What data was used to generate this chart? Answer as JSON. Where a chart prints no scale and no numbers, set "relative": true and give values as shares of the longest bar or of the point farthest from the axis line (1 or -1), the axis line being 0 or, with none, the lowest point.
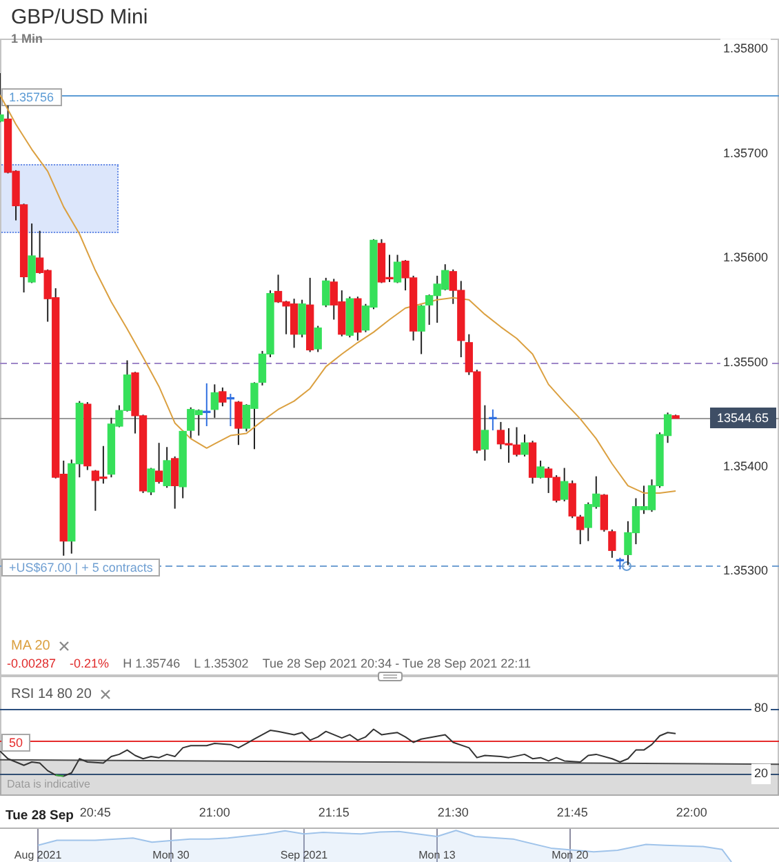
{
  "chart_data": [
    {
      "type": "candlestick",
      "title": "GBP/USD Mini",
      "subtitle": "1 Min",
      "x": [
        "2021-09-28T20:33",
        "2021-09-28T20:34",
        "2021-09-28T20:35",
        "2021-09-28T20:36",
        "2021-09-28T20:37",
        "2021-09-28T20:38",
        "2021-09-28T20:39",
        "2021-09-28T20:40",
        "2021-09-28T20:41",
        "2021-09-28T20:42",
        "2021-09-28T20:43",
        "2021-09-28T20:44",
        "2021-09-28T20:45",
        "2021-09-28T20:46",
        "2021-09-28T20:47",
        "2021-09-28T20:48",
        "2021-09-28T20:49",
        "2021-09-28T20:50",
        "2021-09-28T20:51",
        "2021-09-28T20:52",
        "2021-09-28T20:53",
        "2021-09-28T20:54",
        "2021-09-28T20:55",
        "2021-09-28T20:56",
        "2021-09-28T20:57",
        "2021-09-28T20:58",
        "2021-09-28T20:59",
        "2021-09-28T21:00",
        "2021-09-28T21:01",
        "2021-09-28T21:02",
        "2021-09-28T21:03",
        "2021-09-28T21:04",
        "2021-09-28T21:05",
        "2021-09-28T21:06",
        "2021-09-28T21:07",
        "2021-09-28T21:08",
        "2021-09-28T21:09",
        "2021-09-28T21:10",
        "2021-09-28T21:11",
        "2021-09-28T21:12",
        "2021-09-28T21:13",
        "2021-09-28T21:14",
        "2021-09-28T21:15",
        "2021-09-28T21:16",
        "2021-09-28T21:17",
        "2021-09-28T21:18",
        "2021-09-28T21:19",
        "2021-09-28T21:20",
        "2021-09-28T21:21",
        "2021-09-28T21:22",
        "2021-09-28T21:23",
        "2021-09-28T21:24",
        "2021-09-28T21:25",
        "2021-09-28T21:26",
        "2021-09-28T21:27",
        "2021-09-28T21:28",
        "2021-09-28T21:29",
        "2021-09-28T21:30",
        "2021-09-28T21:31",
        "2021-09-28T21:32",
        "2021-09-28T21:33",
        "2021-09-28T21:34",
        "2021-09-28T21:35",
        "2021-09-28T21:36",
        "2021-09-28T21:37",
        "2021-09-28T21:38",
        "2021-09-28T21:39",
        "2021-09-28T21:40",
        "2021-09-28T21:41",
        "2021-09-28T21:42",
        "2021-09-28T21:43",
        "2021-09-28T21:44",
        "2021-09-28T21:45",
        "2021-09-28T21:46",
        "2021-09-28T21:47",
        "2021-09-28T21:48",
        "2021-09-28T21:49",
        "2021-09-28T21:50",
        "2021-09-28T21:51",
        "2021-09-28T21:52",
        "2021-09-28T21:53",
        "2021-09-28T21:54",
        "2021-09-28T21:55",
        "2021-09-28T21:56",
        "2021-09-28T21:57",
        "2021-09-28T21:58"
      ],
      "ohlc": [
        [
          1.35731,
          1.35777,
          1.3573,
          1.35737
        ],
        [
          1.35733,
          1.35746,
          1.35681,
          1.35682
        ],
        [
          1.35683,
          1.35684,
          1.35636,
          1.3565
        ],
        [
          1.35651,
          1.35652,
          1.35567,
          1.35582
        ],
        [
          1.35577,
          1.35633,
          1.35576,
          1.35602
        ],
        [
          1.356,
          1.35626,
          1.35585,
          1.35586
        ],
        [
          1.35588,
          1.35589,
          1.35539,
          1.35561
        ],
        [
          1.35562,
          1.35571,
          1.35389,
          1.3539
        ],
        [
          1.35393,
          1.35406,
          1.35315,
          1.35329
        ],
        [
          1.35329,
          1.35407,
          1.35317,
          1.35403
        ],
        [
          1.35403,
          1.35463,
          1.3539,
          1.35461
        ],
        [
          1.3546,
          1.35462,
          1.35397,
          1.35401
        ],
        [
          1.35396,
          1.35397,
          1.35358,
          1.35387
        ],
        [
          1.3539,
          1.3542,
          1.35384,
          1.35389
        ],
        [
          1.35393,
          1.35447,
          1.3539,
          1.35441
        ],
        [
          1.35439,
          1.35459,
          1.35438,
          1.35454
        ],
        [
          1.35454,
          1.35502,
          1.35453,
          1.35488
        ],
        [
          1.3549,
          1.35491,
          1.35432,
          1.35449
        ],
        [
          1.35449,
          1.3545,
          1.35375,
          1.35377
        ],
        [
          1.35376,
          1.35399,
          1.35373,
          1.35398
        ],
        [
          1.35396,
          1.35423,
          1.35384,
          1.35386
        ],
        [
          1.35382,
          1.35419,
          1.3538,
          1.35406
        ],
        [
          1.35408,
          1.3541,
          1.3536,
          1.35382
        ],
        [
          1.35381,
          1.35435,
          1.3537,
          1.35434
        ],
        [
          1.35435,
          1.35457,
          1.35427,
          1.35455
        ],
        [
          1.3545,
          1.35455,
          1.3543,
          1.35454
        ],
        [
          1.35452,
          1.3548,
          1.35439,
          1.35452
        ],
        [
          1.35455,
          1.35479,
          1.35447,
          1.35471
        ],
        [
          1.35472,
          1.35476,
          1.35458,
          1.35462
        ],
        [
          1.35465,
          1.3547,
          1.35439,
          1.35465
        ],
        [
          1.35462,
          1.35463,
          1.35421,
          1.35437
        ],
        [
          1.35437,
          1.3546,
          1.35434,
          1.35459
        ],
        [
          1.35456,
          1.35481,
          1.35417,
          1.3548
        ],
        [
          1.35481,
          1.35511,
          1.35478,
          1.35508
        ],
        [
          1.35508,
          1.35569,
          1.35505,
          1.35566
        ],
        [
          1.35568,
          1.35584,
          1.35557,
          1.35558
        ],
        [
          1.35558,
          1.35559,
          1.35527,
          1.35554
        ],
        [
          1.35556,
          1.35561,
          1.35514,
          1.35527
        ],
        [
          1.35527,
          1.3556,
          1.35524,
          1.35556
        ],
        [
          1.35555,
          1.35581,
          1.3551,
          1.35512
        ],
        [
          1.35513,
          1.35535,
          1.3551,
          1.35533
        ],
        [
          1.35555,
          1.35581,
          1.35553,
          1.35578
        ],
        [
          1.35577,
          1.3558,
          1.35541,
          1.35555
        ],
        [
          1.35558,
          1.35569,
          1.35525,
          1.35527
        ],
        [
          1.35526,
          1.35563,
          1.35524,
          1.35561
        ],
        [
          1.35561,
          1.35563,
          1.35521,
          1.35529
        ],
        [
          1.35531,
          1.35556,
          1.35529,
          1.35554
        ],
        [
          1.35553,
          1.35618,
          1.35551,
          1.35617
        ],
        [
          1.35614,
          1.35618,
          1.35576,
          1.35577
        ],
        [
          1.35581,
          1.35603,
          1.35577,
          1.3558
        ],
        [
          1.35577,
          1.35603,
          1.35576,
          1.35596
        ],
        [
          1.35597,
          1.35598,
          1.35569,
          1.35581
        ],
        [
          1.35581,
          1.35583,
          1.35521,
          1.3553
        ],
        [
          1.3553,
          1.35555,
          1.35508,
          1.35554
        ],
        [
          1.35555,
          1.35565,
          1.35536,
          1.35564
        ],
        [
          1.35564,
          1.35583,
          1.35538,
          1.35575
        ],
        [
          1.3557,
          1.35594,
          1.35569,
          1.35588
        ],
        [
          1.35587,
          1.35589,
          1.35556,
          1.35569
        ],
        [
          1.35569,
          1.35578,
          1.35505,
          1.35521
        ],
        [
          1.35519,
          1.35527,
          1.35488,
          1.35491
        ],
        [
          1.35491,
          1.35493,
          1.35413,
          1.35416
        ],
        [
          1.35417,
          1.35459,
          1.35406,
          1.35435
        ],
        [
          1.35446,
          1.35455,
          1.35435,
          1.35446
        ],
        [
          1.35435,
          1.35443,
          1.35417,
          1.35422
        ],
        [
          1.35422,
          1.35437,
          1.35404,
          1.35421
        ],
        [
          1.35421,
          1.35438,
          1.3541,
          1.35412
        ],
        [
          1.35412,
          1.35431,
          1.3541,
          1.35423
        ],
        [
          1.35423,
          1.35425,
          1.35384,
          1.3539
        ],
        [
          1.3539,
          1.35406,
          1.35389,
          1.354
        ],
        [
          1.35398,
          1.354,
          1.35375,
          1.3539
        ],
        [
          1.3539,
          1.35392,
          1.35366,
          1.35368
        ],
        [
          1.35369,
          1.35399,
          1.35367,
          1.35386
        ],
        [
          1.35384,
          1.35387,
          1.35351,
          1.35353
        ],
        [
          1.35352,
          1.35354,
          1.35326,
          1.3534
        ],
        [
          1.35342,
          1.35366,
          1.35329,
          1.35364
        ],
        [
          1.35362,
          1.35391,
          1.3536,
          1.35374
        ],
        [
          1.35373,
          1.35374,
          1.35338,
          1.3534
        ],
        [
          1.35338,
          1.3534,
          1.35313,
          1.3532
        ],
        [
          1.3531,
          1.35313,
          1.35302,
          1.3531
        ],
        [
          1.35316,
          1.35348,
          1.35306,
          1.35337
        ],
        [
          1.35337,
          1.3537,
          1.35326,
          1.35362
        ],
        [
          1.35359,
          1.35382,
          1.35355,
          1.35362
        ],
        [
          1.35359,
          1.35388,
          1.35357,
          1.35382
        ],
        [
          1.35382,
          1.35433,
          1.3538,
          1.35431
        ],
        [
          1.3543,
          1.35452,
          1.35423,
          1.3545
        ],
        [
          1.35449,
          1.3545,
          1.354465,
          1.354465
        ]
      ],
      "colors": [
        "#36e05a",
        "#ee1c24",
        "#ee1c24",
        "#ee1c24",
        "#36e05a",
        "#ee1c24",
        "#ee1c24",
        "#ee1c24",
        "#ee1c24",
        "#36e05a",
        "#36e05a",
        "#ee1c24",
        "#ee1c24",
        "#ee1c24",
        "#36e05a",
        "#36e05a",
        "#36e05a",
        "#ee1c24",
        "#ee1c24",
        "#36e05a",
        "#ee1c24",
        "#36e05a",
        "#ee1c24",
        "#36e05a",
        "#36e05a",
        "#36e05a",
        "#2f6fe0",
        "#36e05a",
        "#ee1c24",
        "#2f6fe0",
        "#ee1c24",
        "#36e05a",
        "#36e05a",
        "#36e05a",
        "#36e05a",
        "#ee1c24",
        "#ee1c24",
        "#ee1c24",
        "#36e05a",
        "#ee1c24",
        "#36e05a",
        "#36e05a",
        "#ee1c24",
        "#ee1c24",
        "#36e05a",
        "#ee1c24",
        "#36e05a",
        "#36e05a",
        "#ee1c24",
        "#ee1c24",
        "#36e05a",
        "#ee1c24",
        "#ee1c24",
        "#36e05a",
        "#36e05a",
        "#36e05a",
        "#36e05a",
        "#ee1c24",
        "#ee1c24",
        "#ee1c24",
        "#ee1c24",
        "#36e05a",
        "#2f6fe0",
        "#ee1c24",
        "#ee1c24",
        "#ee1c24",
        "#36e05a",
        "#ee1c24",
        "#36e05a",
        "#ee1c24",
        "#ee1c24",
        "#36e05a",
        "#ee1c24",
        "#ee1c24",
        "#36e05a",
        "#36e05a",
        "#ee1c24",
        "#ee1c24",
        "#2f6fe0",
        "#36e05a",
        "#36e05a",
        "#36e05a",
        "#36e05a",
        "#36e05a",
        "#36e05a",
        "#ee1c24"
      ],
      "series": [
        {
          "name": "MA 20",
          "type": "line",
          "color": "#dba040",
          "x": [
            "2021-09-28T20:33",
            "2021-09-28T20:35",
            "2021-09-28T20:37",
            "2021-09-28T20:39",
            "2021-09-28T20:41",
            "2021-09-28T20:43",
            "2021-09-28T20:45",
            "2021-09-28T20:47",
            "2021-09-28T20:49",
            "2021-09-28T20:51",
            "2021-09-28T20:53",
            "2021-09-28T20:55",
            "2021-09-28T20:57",
            "2021-09-28T20:59",
            "2021-09-28T21:00",
            "2021-09-28T21:02",
            "2021-09-28T21:04",
            "2021-09-28T21:06",
            "2021-09-28T21:08",
            "2021-09-28T21:10",
            "2021-09-28T21:12",
            "2021-09-28T21:14",
            "2021-09-28T21:16",
            "2021-09-28T21:18",
            "2021-09-28T21:20",
            "2021-09-28T21:22",
            "2021-09-28T21:24",
            "2021-09-28T21:26",
            "2021-09-28T21:28",
            "2021-09-28T21:30",
            "2021-09-28T21:32",
            "2021-09-28T21:34",
            "2021-09-28T21:36",
            "2021-09-28T21:38",
            "2021-09-28T21:40",
            "2021-09-28T21:42",
            "2021-09-28T21:44",
            "2021-09-28T21:46",
            "2021-09-28T21:48",
            "2021-09-28T21:50",
            "2021-09-28T21:52",
            "2021-09-28T21:54",
            "2021-09-28T21:56",
            "2021-09-28T21:58"
          ],
          "values": [
            1.35756,
            1.35728,
            1.35704,
            1.35683,
            1.35649,
            1.35623,
            1.35588,
            1.35558,
            1.35532,
            1.35505,
            1.35477,
            1.35442,
            1.35427,
            1.35418,
            1.35422,
            1.3543,
            1.35432,
            1.35444,
            1.35455,
            1.35463,
            1.35475,
            1.35496,
            1.35508,
            1.35519,
            1.35529,
            1.35541,
            1.35552,
            1.35556,
            1.3556,
            1.35562,
            1.3556,
            1.35546,
            1.35534,
            1.35523,
            1.35508,
            1.35479,
            1.35462,
            1.35446,
            1.35427,
            1.35403,
            1.35382,
            1.35375,
            1.35375,
            1.35377
          ]
        }
      ],
      "xlim": [
        "2021-09-28T20:33",
        "2021-09-28T22:11"
      ],
      "ylim": [
        1.352,
        1.3581
      ],
      "yticks": [
        {
          "value": 1.353,
          "label": "1.35300"
        },
        {
          "value": 1.354,
          "label": "1.35400"
        },
        {
          "value": 1.355,
          "label": "1.35500"
        },
        {
          "value": 1.356,
          "label": "1.35600"
        },
        {
          "value": 1.357,
          "label": "1.35700"
        },
        {
          "value": 1.358,
          "label": "1.35800"
        }
      ],
      "tick_labels": "y",
      "legend": "bottom left",
      "ref_lines": [
        {
          "axis": "y",
          "value": 1.35756,
          "label": "1.35756",
          "color": "#5b9bd5"
        },
        {
          "axis": "y",
          "value": 1.355,
          "color": "#9e86c8",
          "line_style": "dashed"
        },
        {
          "axis": "y",
          "value": 1.354465,
          "color": "#9a9a9a"
        },
        {
          "axis": "y",
          "value": 1.35305,
          "label": "+US$67.00 | + 5 contracts",
          "color": "#6f9fd2",
          "line_style": "dashed"
        }
      ],
      "annotations": [
        {
          "text": "13544.65",
          "x": "2021-09-28T22:11",
          "y": 1.354465
        },
        "-0.00287",
        "-0.21%",
        "H 1.35746",
        "L 1.35302",
        "Tue 28 Sep 2021 20:34 - Tue 28 Sep 2021 22:11"
      ]
    },
    {
      "type": "line",
      "title": "RSI 14 80 20",
      "xlabel": "Tue 28 Sep",
      "series": [
        {
          "type": "area",
          "color": "#4a4a4a",
          "x": [
            "2021-09-28T20:33",
            "2021-09-28T22:11"
          ],
          "values": [
            33,
            29
          ]
        },
        {
          "color": "#333333",
          "x": [
            "2021-09-28T20:33",
            "2021-09-28T20:34",
            "2021-09-28T20:36",
            "2021-09-28T20:37",
            "2021-09-28T20:38",
            "2021-09-28T20:39",
            "2021-09-28T20:40",
            "2021-09-28T20:41",
            "2021-09-28T20:42",
            "2021-09-28T20:43",
            "2021-09-28T20:44",
            "2021-09-28T20:46",
            "2021-09-28T20:47",
            "2021-09-28T20:48",
            "2021-09-28T20:49",
            "2021-09-28T20:50",
            "2021-09-28T20:51",
            "2021-09-28T20:52",
            "2021-09-28T20:53",
            "2021-09-28T20:54",
            "2021-09-28T20:55",
            "2021-09-28T20:56",
            "2021-09-28T20:57",
            "2021-09-28T20:59",
            "2021-09-28T21:00",
            "2021-09-28T21:02",
            "2021-09-28T21:03",
            "2021-09-28T21:04",
            "2021-09-28T21:05",
            "2021-09-28T21:07",
            "2021-09-28T21:08",
            "2021-09-28T21:10",
            "2021-09-28T21:11",
            "2021-09-28T21:12",
            "2021-09-28T21:13",
            "2021-09-28T21:14",
            "2021-09-28T21:15",
            "2021-09-28T21:16",
            "2021-09-28T21:17",
            "2021-09-28T21:18",
            "2021-09-28T21:19",
            "2021-09-28T21:20",
            "2021-09-28T21:21",
            "2021-09-28T21:22",
            "2021-09-28T21:23",
            "2021-09-28T21:24",
            "2021-09-28T21:25",
            "2021-09-28T21:26",
            "2021-09-28T21:29",
            "2021-09-28T21:30",
            "2021-09-28T21:32",
            "2021-09-28T21:33",
            "2021-09-28T21:34",
            "2021-09-28T21:36",
            "2021-09-28T21:37",
            "2021-09-28T21:39",
            "2021-09-28T21:40",
            "2021-09-28T21:41",
            "2021-09-28T21:42",
            "2021-09-28T21:43",
            "2021-09-28T21:44",
            "2021-09-28T21:46",
            "2021-09-28T21:47",
            "2021-09-28T21:48",
            "2021-09-28T21:50",
            "2021-09-28T21:51",
            "2021-09-28T21:52",
            "2021-09-28T21:53",
            "2021-09-28T21:54",
            "2021-09-28T21:55",
            "2021-09-28T21:56",
            "2021-09-28T21:57",
            "2021-09-28T21:58"
          ],
          "values": [
            41,
            34,
            28,
            31,
            30,
            23,
            19,
            18,
            21,
            34,
            31,
            30,
            36,
            38,
            42,
            37,
            34,
            36,
            35,
            38,
            36,
            44,
            46,
            46,
            48,
            47,
            44,
            48,
            52,
            60,
            59,
            56,
            58,
            51,
            54,
            59,
            56,
            53,
            56,
            51,
            54,
            61,
            56,
            57,
            58,
            54,
            49,
            52,
            56,
            49,
            44,
            35,
            37,
            36,
            35,
            38,
            34,
            35,
            32,
            35,
            32,
            31,
            37,
            38,
            34,
            31,
            34,
            42,
            42,
            47,
            55,
            58,
            57
          ]
        },
        {
          "color": "#3cae3c",
          "x": [
            "2021-09-28T20:40",
            "2021-09-28T20:41"
          ],
          "values": [
            19,
            18
          ]
        }
      ],
      "xlim": [
        "2021-09-28T20:33",
        "2021-09-28T22:11"
      ],
      "xticks": [
        {
          "value": "2021-09-28T20:45",
          "label": "20:45"
        },
        {
          "value": "2021-09-28T21:00",
          "label": "21:00"
        },
        {
          "value": "2021-09-28T21:15",
          "label": "21:15"
        },
        {
          "value": "2021-09-28T21:30",
          "label": "21:30"
        },
        {
          "value": "2021-09-28T21:45",
          "label": "21:45"
        },
        {
          "value": "2021-09-28T22:00",
          "label": "22:00"
        }
      ],
      "ylim": [
        0,
        110
      ],
      "yticks": [
        80,
        20
      ],
      "ref_lines": [
        {
          "axis": "y",
          "value": 80,
          "color": "#2b4f7e"
        },
        {
          "axis": "y",
          "value": 20,
          "color": "#2b4f7e"
        },
        {
          "axis": "y",
          "value": 50,
          "label": "50",
          "color": "#e52b2b"
        }
      ],
      "annotations": [
        "Data is indicative"
      ]
    },
    {
      "type": "area",
      "relative": true,
      "color": "#9fc3ea",
      "grid": "x",
      "x": [
        "2021-08-23",
        "2021-08-24",
        "2021-08-26",
        "2021-08-28",
        "2021-08-29",
        "2021-08-31",
        "2021-09-01",
        "2021-09-02",
        "2021-09-04",
        "2021-09-05",
        "2021-09-06",
        "2021-09-07",
        "2021-09-09",
        "2021-09-10",
        "2021-09-11",
        "2021-09-13",
        "2021-09-14",
        "2021-09-15",
        "2021-09-17",
        "2021-09-19",
        "2021-09-21T06:00",
        "2021-09-22T12:00",
        "2021-09-24",
        "2021-09-25",
        "2021-09-27",
        "2021-09-28",
        "2021-09-28T12:00"
      ],
      "values": [
        0.53,
        0.69,
        0.69,
        0.76,
        0.63,
        0.73,
        0.73,
        0.76,
        0.89,
        0.99,
        0.89,
        0.94,
        0.89,
        0.95,
        0.97,
        0.81,
        1,
        0.81,
        0.73,
        0.44,
        0.32,
        0.37,
        0.56,
        0.53,
        0.49,
        0.4,
        0
      ],
      "xlim": [
        "2021-08-21",
        "2021-10-01"
      ],
      "xticks": [
        {
          "value": "2021-08-23",
          "label": "Aug 2021"
        },
        {
          "value": "2021-08-30",
          "label": "Mon 30"
        },
        {
          "value": "2021-09-06",
          "label": "Sep 2021"
        },
        {
          "value": "2021-09-13",
          "label": "Mon 13"
        },
        {
          "value": "2021-09-20",
          "label": "Mon 20"
        }
      ]
    }
  ]
}
